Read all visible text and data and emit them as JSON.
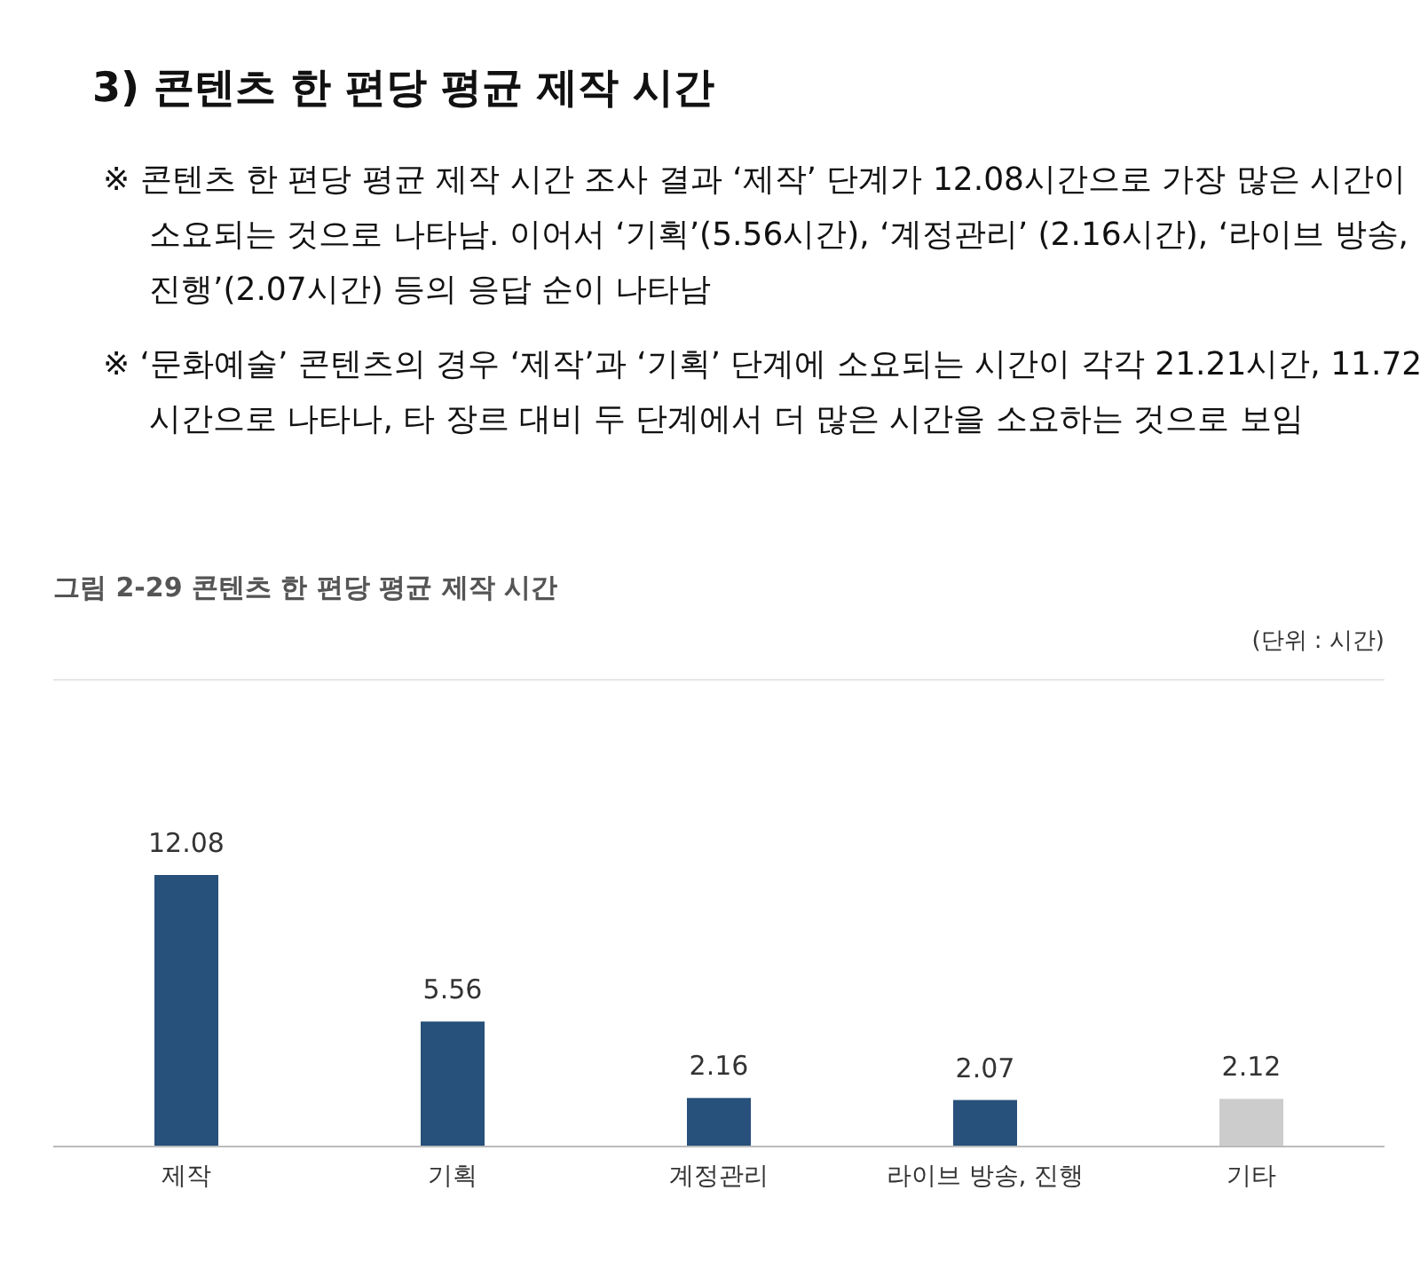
{
  "chart_data": {
    "type": "bar",
    "title": "3) 콘텐츠 한 편당 평균 제작 시간",
    "subtitle": "그림 2-29 콘텐츠 한 편당 평균 제작 시간",
    "annotations": [
      "※ 콘텐츠 한 편당 평균 제작 시간 조사 결과 ‘제작’ 단계가 12.08시간으로 가장 많은 시간이 소요되는 것으로 나타남. 이어서 ‘기획’(5.56시간), ‘계정관리’ (2.16시간), ‘라이브 방송, 진행’(2.07시간) 등의 응답 순이 나타남",
      "※ ‘문화예술’ 콘텐츠의 경우 ‘제작’과 ‘기획’ 단계에 소요되는 시간이 각각 21.21시간, 11.72시간으로 나타나, 타 장르 대비 두 단계에서 더 많은 시간을 소요하는 것으로 보임",
      "(단위 : 시간)"
    ],
    "categories": [
      "제작",
      "기획",
      "계정관리",
      "라이브 방송, 진행",
      "기타"
    ],
    "values": [
      12.08,
      5.56,
      2.16,
      2.07,
      2.12
    ],
    "colors": [
      "#27507a",
      "#27507a",
      "#27507a",
      "#27507a",
      "#cccccc"
    ],
    "data_labels": true
  }
}
